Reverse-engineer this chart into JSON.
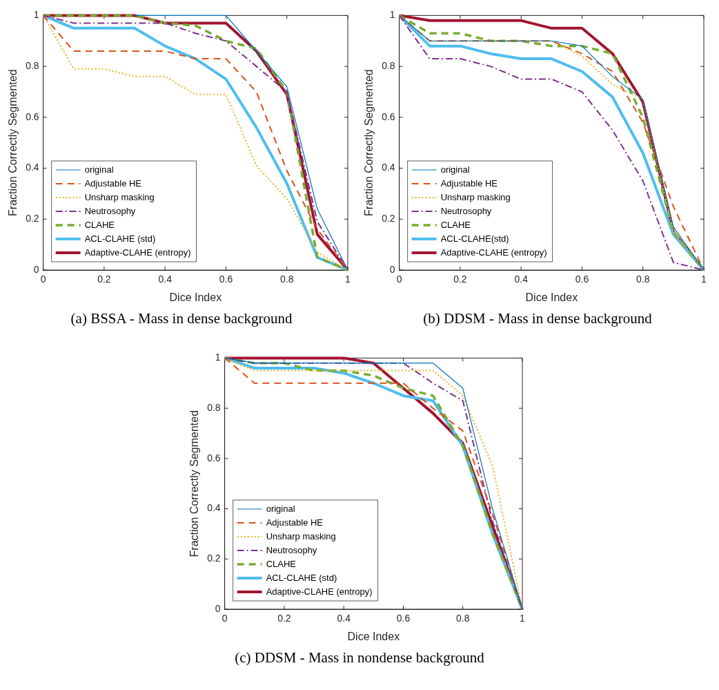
{
  "chart_data": [
    {
      "type": "line",
      "title": "(a) BSSA - Mass in dense background",
      "xlabel": "Dice Index",
      "ylabel": "Fraction Correctly Segmented",
      "x": [
        0,
        0.1,
        0.2,
        0.3,
        0.4,
        0.5,
        0.6,
        0.7,
        0.8,
        0.9,
        1
      ],
      "xlim": [
        0,
        1
      ],
      "ylim": [
        0,
        1
      ],
      "xticks": [
        0,
        0.2,
        0.4,
        0.6,
        0.8,
        1
      ],
      "yticks": [
        0,
        0.2,
        0.4,
        0.6,
        0.8,
        1
      ],
      "grid": false,
      "legend": "bottom left",
      "marker": "none",
      "series": [
        {
          "name": "original",
          "color": "#0072bd",
          "line_style": "solid",
          "values": [
            null,
            null,
            null,
            1,
            1,
            1,
            1,
            0.86,
            0.72,
            0.24,
            0
          ]
        },
        {
          "name": "Adjustable HE",
          "color": "#d95319",
          "line_style": "dashed",
          "values": [
            1,
            0.86,
            0.86,
            0.86,
            0.86,
            0.83,
            0.83,
            0.7,
            0.39,
            0.16,
            0
          ]
        },
        {
          "name": "Unsharp masking",
          "color": "#edb120",
          "line_style": "dotted",
          "values": [
            1,
            0.79,
            0.79,
            0.76,
            0.76,
            0.69,
            0.69,
            0.41,
            0.28,
            0.07,
            0
          ]
        },
        {
          "name": "Neutrosophy",
          "color": "#7e2f8e",
          "line_style": "dashdot",
          "values": [
            1,
            0.97,
            0.97,
            0.97,
            0.97,
            0.93,
            0.9,
            0.8,
            0.7,
            0.19,
            0
          ]
        },
        {
          "name": "CLAHE",
          "color": "#77ac30",
          "line_style": "dashed",
          "values": [
            1,
            1,
            1,
            1,
            0.97,
            0.96,
            0.9,
            0.87,
            0.7,
            0.05,
            0
          ]
        },
        {
          "name": "ACL-CLAHE (std)",
          "color": "#4dbeee",
          "line_style": "solid",
          "values": [
            1,
            0.95,
            0.95,
            0.95,
            0.88,
            0.83,
            0.75,
            0.56,
            0.34,
            0.05,
            0
          ]
        },
        {
          "name": "Adaptive-CLAHE (entropy)",
          "color": "#a2142f",
          "line_style": "solid",
          "values": [
            1,
            1,
            1,
            1,
            0.97,
            0.97,
            0.97,
            0.86,
            0.69,
            0.14,
            0
          ]
        }
      ]
    },
    {
      "type": "line",
      "title": "(b) DDSM - Mass in dense background",
      "xlabel": "Dice Index",
      "ylabel": "Fraction Correctly Segmented",
      "x": [
        0,
        0.1,
        0.2,
        0.3,
        0.4,
        0.5,
        0.6,
        0.7,
        0.8,
        0.9,
        1
      ],
      "xlim": [
        0,
        1
      ],
      "ylim": [
        0,
        1
      ],
      "xticks": [
        0,
        0.2,
        0.4,
        0.6,
        0.8,
        1
      ],
      "yticks": [
        0,
        0.2,
        0.4,
        0.6,
        0.8,
        1
      ],
      "grid": false,
      "legend": "bottom left",
      "marker": "none",
      "series": [
        {
          "name": "original",
          "color": "#0072bd",
          "line_style": "solid",
          "values": [
            1,
            0.9,
            0.9,
            0.9,
            0.9,
            0.9,
            0.88,
            0.76,
            0.67,
            0.17,
            0
          ]
        },
        {
          "name": "Adjustable HE",
          "color": "#d95319",
          "line_style": "dashed",
          "values": [
            1,
            0.9,
            0.9,
            0.9,
            0.9,
            0.9,
            0.85,
            0.78,
            0.58,
            0.25,
            0
          ]
        },
        {
          "name": "Unsharp masking",
          "color": "#edb120",
          "line_style": "dotted",
          "values": [
            1,
            0.9,
            0.9,
            0.9,
            0.9,
            0.9,
            0.84,
            0.73,
            0.67,
            0.15,
            0
          ]
        },
        {
          "name": "Neutrosophy",
          "color": "#7e2f8e",
          "line_style": "dashdot",
          "values": [
            1,
            0.83,
            0.83,
            0.8,
            0.75,
            0.75,
            0.7,
            0.55,
            0.35,
            0.03,
            0
          ]
        },
        {
          "name": "CLAHE",
          "color": "#77ac30",
          "line_style": "dashed",
          "values": [
            1,
            0.93,
            0.93,
            0.9,
            0.9,
            0.88,
            0.88,
            0.85,
            0.6,
            0.15,
            0
          ]
        },
        {
          "name": "ACL-CLAHE(std)",
          "color": "#4dbeee",
          "line_style": "solid",
          "values": [
            1,
            0.88,
            0.88,
            0.85,
            0.83,
            0.83,
            0.78,
            0.68,
            0.46,
            0.14,
            0
          ]
        },
        {
          "name": "Adaptive-CLAHE (entropy)",
          "color": "#a2142f",
          "line_style": "solid",
          "values": [
            1,
            0.98,
            0.98,
            0.98,
            0.98,
            0.95,
            0.95,
            0.85,
            0.66,
            0.15,
            0
          ]
        }
      ]
    },
    {
      "type": "line",
      "title": "(c) DDSM - Mass in nondense background",
      "xlabel": "Dice Index",
      "ylabel": "Fraction Correctly Segmented",
      "x": [
        0,
        0.1,
        0.2,
        0.3,
        0.4,
        0.5,
        0.6,
        0.7,
        0.8,
        0.9,
        1
      ],
      "xlim": [
        0,
        1
      ],
      "ylim": [
        0,
        1
      ],
      "xticks": [
        0,
        0.2,
        0.4,
        0.6,
        0.8,
        1
      ],
      "yticks": [
        0,
        0.2,
        0.4,
        0.6,
        0.8,
        1
      ],
      "grid": false,
      "legend": "bottom left",
      "marker": "none",
      "series": [
        {
          "name": "original",
          "color": "#0072bd",
          "line_style": "solid",
          "values": [
            1,
            0.98,
            0.98,
            0.98,
            0.98,
            0.98,
            0.98,
            0.98,
            0.88,
            0.4,
            0
          ]
        },
        {
          "name": "Adjustable HE",
          "color": "#d95319",
          "line_style": "dashed",
          "values": [
            1,
            0.9,
            0.9,
            0.9,
            0.9,
            0.9,
            0.9,
            0.8,
            0.71,
            0.38,
            0
          ]
        },
        {
          "name": "Unsharp masking",
          "color": "#edb120",
          "line_style": "dotted",
          "values": [
            1,
            0.95,
            0.95,
            0.95,
            0.95,
            0.95,
            0.95,
            0.95,
            0.85,
            0.57,
            0
          ]
        },
        {
          "name": "Neutrosophy",
          "color": "#7e2f8e",
          "line_style": "dashdot",
          "values": [
            1,
            0.98,
            0.98,
            0.98,
            0.98,
            0.98,
            0.98,
            0.9,
            0.83,
            0.35,
            0
          ]
        },
        {
          "name": "CLAHE",
          "color": "#77ac30",
          "line_style": "dashed",
          "values": [
            1,
            0.98,
            0.98,
            0.95,
            0.95,
            0.93,
            0.88,
            0.85,
            0.65,
            0.3,
            0
          ]
        },
        {
          "name": "ACL-CLAHE (std)",
          "color": "#4dbeee",
          "line_style": "solid",
          "values": [
            1,
            0.96,
            0.96,
            0.96,
            0.94,
            0.9,
            0.85,
            0.83,
            0.65,
            0.3,
            0
          ]
        },
        {
          "name": "Adaptive-CLAHE (entropy)",
          "color": "#a2142f",
          "line_style": "solid",
          "values": [
            1,
            1,
            1,
            1,
            1,
            0.98,
            0.88,
            0.78,
            0.66,
            0.33,
            0
          ]
        }
      ]
    }
  ]
}
